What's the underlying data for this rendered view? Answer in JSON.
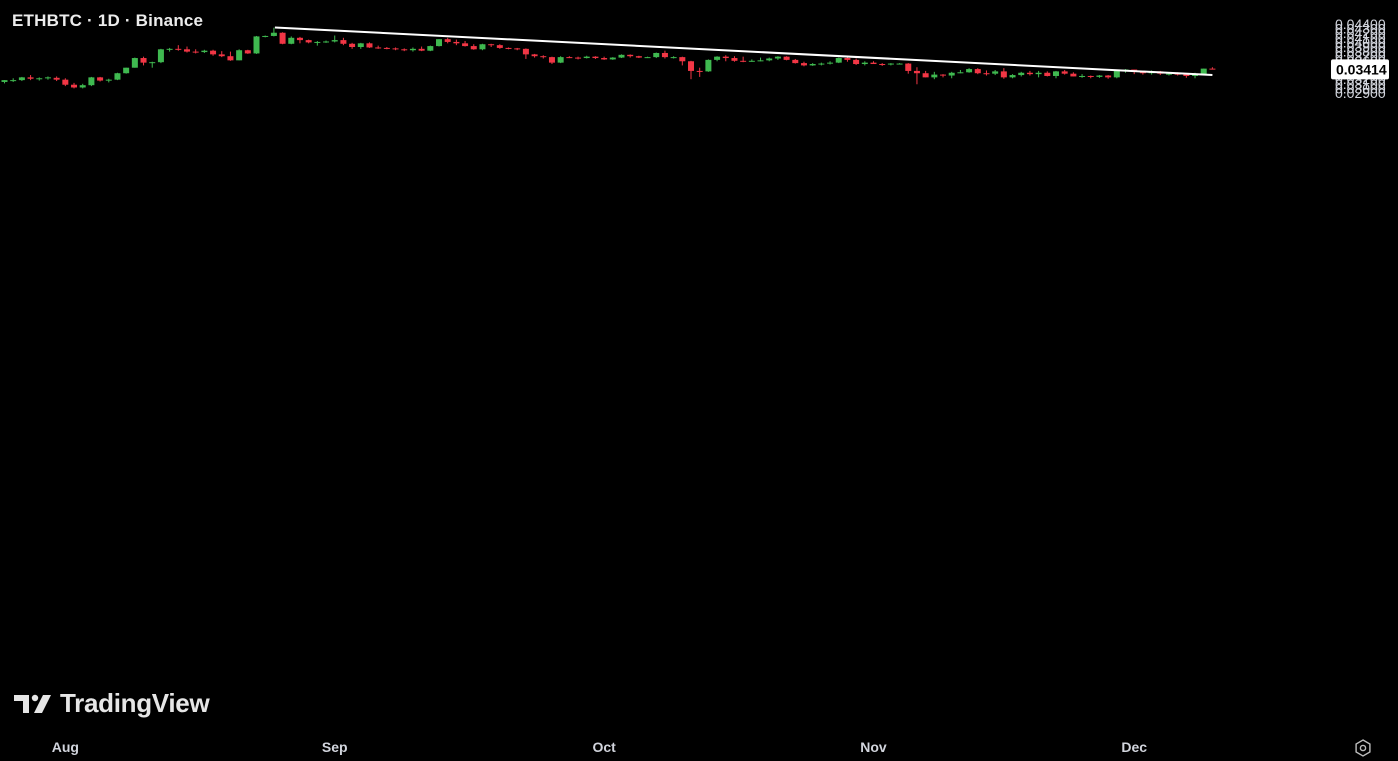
{
  "header": {
    "title": "ETHBTC · 1D · Binance"
  },
  "brand": {
    "logo_text": "TradingView",
    "logo_icon": "tradingview-logo-icon"
  },
  "controls": {
    "settings_icon": "settings-icon"
  },
  "colors": {
    "up": "#3fb950",
    "down": "#f23645",
    "trendline": "#ffffff",
    "price_label_bg": "#ffffff",
    "price_label_text": "#000000"
  },
  "chart_data": {
    "type": "candlestick",
    "title": "ETHBTC · 1D · Binance",
    "ylim": [
      0.0285,
      0.0443
    ],
    "y_ticks": [
      "0.04400",
      "0.04300",
      "0.04200",
      "0.04100",
      "0.04000",
      "0.03900",
      "0.03800",
      "0.03700",
      "0.03600",
      "0.03500",
      "0.03400",
      "0.03300",
      "0.03200",
      "0.03100",
      "0.03000",
      "0.02900"
    ],
    "x_labels": [
      "Aug",
      "Sep",
      "Oct",
      "Nov",
      "Dec"
    ],
    "x_label_index": [
      7,
      38,
      69,
      100,
      130
    ],
    "current_price": "0.03414",
    "trendline": {
      "start_index": 31,
      "start_price": 0.04325,
      "end_index": 139,
      "end_price": 0.0329
    },
    "candles": [
      [
        0.0314,
        0.0318,
        0.0311,
        0.0318
      ],
      [
        0.0317,
        0.0322,
        0.0314,
        0.0318
      ],
      [
        0.0318,
        0.0325,
        0.0316,
        0.0324
      ],
      [
        0.0324,
        0.0329,
        0.0318,
        0.0321
      ],
      [
        0.0321,
        0.0324,
        0.0317,
        0.0322
      ],
      [
        0.0322,
        0.0326,
        0.0319,
        0.0324
      ],
      [
        0.0323,
        0.0326,
        0.0316,
        0.0319
      ],
      [
        0.0319,
        0.0322,
        0.0305,
        0.0308
      ],
      [
        0.0308,
        0.0312,
        0.03,
        0.0302
      ],
      [
        0.0302,
        0.031,
        0.03,
        0.0307
      ],
      [
        0.0307,
        0.0325,
        0.0305,
        0.0324
      ],
      [
        0.0324,
        0.0325,
        0.0315,
        0.0317
      ],
      [
        0.0317,
        0.0321,
        0.0313,
        0.0319
      ],
      [
        0.0319,
        0.0334,
        0.0318,
        0.0333
      ],
      [
        0.0333,
        0.0345,
        0.0332,
        0.0345
      ],
      [
        0.0345,
        0.0367,
        0.0345,
        0.0366
      ],
      [
        0.0366,
        0.0369,
        0.035,
        0.0356
      ],
      [
        0.0356,
        0.0358,
        0.0345,
        0.0357
      ],
      [
        0.0357,
        0.0386,
        0.0355,
        0.0385
      ],
      [
        0.0385,
        0.0388,
        0.038,
        0.0386
      ],
      [
        0.0386,
        0.0394,
        0.0382,
        0.0385
      ],
      [
        0.0385,
        0.0391,
        0.0378,
        0.038
      ],
      [
        0.038,
        0.0385,
        0.0376,
        0.0379
      ],
      [
        0.0379,
        0.0384,
        0.0377,
        0.0382
      ],
      [
        0.0382,
        0.0384,
        0.0371,
        0.0374
      ],
      [
        0.0374,
        0.0381,
        0.0368,
        0.037
      ],
      [
        0.037,
        0.038,
        0.036,
        0.0361
      ],
      [
        0.0361,
        0.0385,
        0.0361,
        0.0383
      ],
      [
        0.0383,
        0.0384,
        0.0375,
        0.0376
      ],
      [
        0.0376,
        0.0414,
        0.0375,
        0.0413
      ],
      [
        0.0413,
        0.0415,
        0.0411,
        0.0414
      ],
      [
        0.0414,
        0.0432,
        0.0413,
        0.0421
      ],
      [
        0.0421,
        0.0422,
        0.0396,
        0.0397
      ],
      [
        0.0397,
        0.0413,
        0.0396,
        0.041
      ],
      [
        0.041,
        0.0412,
        0.0398,
        0.0405
      ],
      [
        0.0405,
        0.0406,
        0.0398,
        0.04
      ],
      [
        0.04,
        0.0403,
        0.0393,
        0.0401
      ],
      [
        0.0401,
        0.0404,
        0.0399,
        0.0402
      ],
      [
        0.0402,
        0.0415,
        0.04,
        0.0405
      ],
      [
        0.0405,
        0.041,
        0.0394,
        0.0397
      ],
      [
        0.0397,
        0.0399,
        0.0386,
        0.039
      ],
      [
        0.039,
        0.0399,
        0.0386,
        0.0398
      ],
      [
        0.0398,
        0.04,
        0.0388,
        0.0389
      ],
      [
        0.0389,
        0.0393,
        0.0386,
        0.0388
      ],
      [
        0.0388,
        0.039,
        0.0385,
        0.0387
      ],
      [
        0.0387,
        0.0389,
        0.0383,
        0.0385
      ],
      [
        0.0385,
        0.0387,
        0.0381,
        0.0383
      ],
      [
        0.0383,
        0.0389,
        0.038,
        0.0386
      ],
      [
        0.0386,
        0.0391,
        0.0381,
        0.0382
      ],
      [
        0.0382,
        0.0393,
        0.0381,
        0.0392
      ],
      [
        0.0392,
        0.0407,
        0.0391,
        0.0407
      ],
      [
        0.0407,
        0.041,
        0.0398,
        0.0401
      ],
      [
        0.0401,
        0.0406,
        0.0394,
        0.0398
      ],
      [
        0.0398,
        0.0403,
        0.0391,
        0.0392
      ],
      [
        0.0392,
        0.0396,
        0.0384,
        0.0385
      ],
      [
        0.0385,
        0.0397,
        0.0383,
        0.0396
      ],
      [
        0.0396,
        0.0397,
        0.039,
        0.0394
      ],
      [
        0.0394,
        0.0396,
        0.0386,
        0.0388
      ],
      [
        0.0388,
        0.0389,
        0.0385,
        0.0387
      ],
      [
        0.0387,
        0.0388,
        0.0383,
        0.0386
      ],
      [
        0.0386,
        0.0387,
        0.0364,
        0.0374
      ],
      [
        0.0374,
        0.0375,
        0.0367,
        0.037
      ],
      [
        0.037,
        0.0372,
        0.0365,
        0.0368
      ],
      [
        0.0368,
        0.0369,
        0.0353,
        0.0356
      ],
      [
        0.0356,
        0.037,
        0.0355,
        0.0368
      ],
      [
        0.0368,
        0.037,
        0.0366,
        0.0367
      ],
      [
        0.0367,
        0.0369,
        0.0363,
        0.0366
      ],
      [
        0.0366,
        0.0371,
        0.0365,
        0.0369
      ],
      [
        0.0369,
        0.037,
        0.0364,
        0.0366
      ],
      [
        0.0366,
        0.0369,
        0.0362,
        0.0363
      ],
      [
        0.0363,
        0.0368,
        0.0362,
        0.0367
      ],
      [
        0.0367,
        0.0374,
        0.0366,
        0.0373
      ],
      [
        0.0373,
        0.0374,
        0.0367,
        0.037
      ],
      [
        0.037,
        0.0371,
        0.0366,
        0.0367
      ],
      [
        0.0367,
        0.0369,
        0.0366,
        0.0368
      ],
      [
        0.0368,
        0.0378,
        0.0366,
        0.0377
      ],
      [
        0.0377,
        0.0382,
        0.0365,
        0.0368
      ],
      [
        0.0368,
        0.037,
        0.0365,
        0.0368
      ],
      [
        0.0368,
        0.0369,
        0.035,
        0.0359
      ],
      [
        0.0359,
        0.036,
        0.032,
        0.0338
      ],
      [
        0.0338,
        0.0345,
        0.0325,
        0.0337
      ],
      [
        0.0337,
        0.0363,
        0.0336,
        0.0362
      ],
      [
        0.0362,
        0.037,
        0.0359,
        0.0369
      ],
      [
        0.0369,
        0.0372,
        0.0359,
        0.0366
      ],
      [
        0.0366,
        0.037,
        0.0358,
        0.036
      ],
      [
        0.036,
        0.0369,
        0.0357,
        0.0359
      ],
      [
        0.0359,
        0.0363,
        0.0358,
        0.036
      ],
      [
        0.036,
        0.0367,
        0.0359,
        0.0361
      ],
      [
        0.0361,
        0.0367,
        0.0359,
        0.0365
      ],
      [
        0.0365,
        0.037,
        0.0362,
        0.0369
      ],
      [
        0.0369,
        0.037,
        0.0361,
        0.0362
      ],
      [
        0.0362,
        0.0364,
        0.0354,
        0.0355
      ],
      [
        0.0355,
        0.0358,
        0.0348,
        0.035
      ],
      [
        0.035,
        0.0355,
        0.0349,
        0.0353
      ],
      [
        0.0353,
        0.0356,
        0.035,
        0.0354
      ],
      [
        0.0354,
        0.0359,
        0.0352,
        0.0356
      ],
      [
        0.0356,
        0.0367,
        0.0355,
        0.0366
      ],
      [
        0.0366,
        0.037,
        0.0358,
        0.0362
      ],
      [
        0.0362,
        0.0365,
        0.0351,
        0.0353
      ],
      [
        0.0353,
        0.0359,
        0.035,
        0.0356
      ],
      [
        0.0356,
        0.0359,
        0.0353,
        0.0353
      ],
      [
        0.0353,
        0.0355,
        0.0349,
        0.0352
      ],
      [
        0.0352,
        0.0355,
        0.035,
        0.0354
      ],
      [
        0.0354,
        0.0355,
        0.0352,
        0.0354
      ],
      [
        0.0354,
        0.0355,
        0.0332,
        0.0338
      ],
      [
        0.0338,
        0.0346,
        0.0309,
        0.0333
      ],
      [
        0.0333,
        0.0338,
        0.0324,
        0.0324
      ],
      [
        0.0324,
        0.0336,
        0.032,
        0.033
      ],
      [
        0.033,
        0.0331,
        0.0324,
        0.0328
      ],
      [
        0.0328,
        0.0336,
        0.0322,
        0.0334
      ],
      [
        0.0334,
        0.034,
        0.0333,
        0.0335
      ],
      [
        0.0335,
        0.0344,
        0.0334,
        0.0342
      ],
      [
        0.0342,
        0.0344,
        0.0331,
        0.0333
      ],
      [
        0.0333,
        0.0339,
        0.0328,
        0.0332
      ],
      [
        0.0332,
        0.034,
        0.0329,
        0.0337
      ],
      [
        0.0337,
        0.0344,
        0.0321,
        0.0324
      ],
      [
        0.0324,
        0.0331,
        0.0322,
        0.0329
      ],
      [
        0.0329,
        0.0336,
        0.0326,
        0.0334
      ],
      [
        0.0334,
        0.0338,
        0.0328,
        0.0331
      ],
      [
        0.0331,
        0.0338,
        0.0324,
        0.0334
      ],
      [
        0.0334,
        0.0337,
        0.0326,
        0.0327
      ],
      [
        0.0327,
        0.0338,
        0.0322,
        0.0337
      ],
      [
        0.0337,
        0.034,
        0.033,
        0.0332
      ],
      [
        0.0332,
        0.0335,
        0.0326,
        0.0326
      ],
      [
        0.0326,
        0.0331,
        0.0323,
        0.0327
      ],
      [
        0.0327,
        0.0328,
        0.0322,
        0.0325
      ],
      [
        0.0325,
        0.0329,
        0.0323,
        0.0328
      ],
      [
        0.0328,
        0.0329,
        0.0321,
        0.0324
      ],
      [
        0.0324,
        0.0339,
        0.0322,
        0.0338
      ],
      [
        0.0338,
        0.0342,
        0.0334,
        0.0341
      ],
      [
        0.0341,
        0.0341,
        0.0331,
        0.0336
      ],
      [
        0.0336,
        0.0338,
        0.033,
        0.0333
      ],
      [
        0.0333,
        0.0339,
        0.033,
        0.0337
      ],
      [
        0.0337,
        0.0338,
        0.0329,
        0.0332
      ],
      [
        0.0332,
        0.0334,
        0.0328,
        0.0332
      ],
      [
        0.0332,
        0.0335,
        0.0328,
        0.0331
      ],
      [
        0.0331,
        0.0333,
        0.0323,
        0.0327
      ],
      [
        0.0327,
        0.0334,
        0.0322,
        0.0331
      ],
      [
        0.0331,
        0.0343,
        0.0328,
        0.0343
      ],
      [
        0.0343,
        0.0346,
        0.0341,
        0.0341
      ]
    ]
  }
}
